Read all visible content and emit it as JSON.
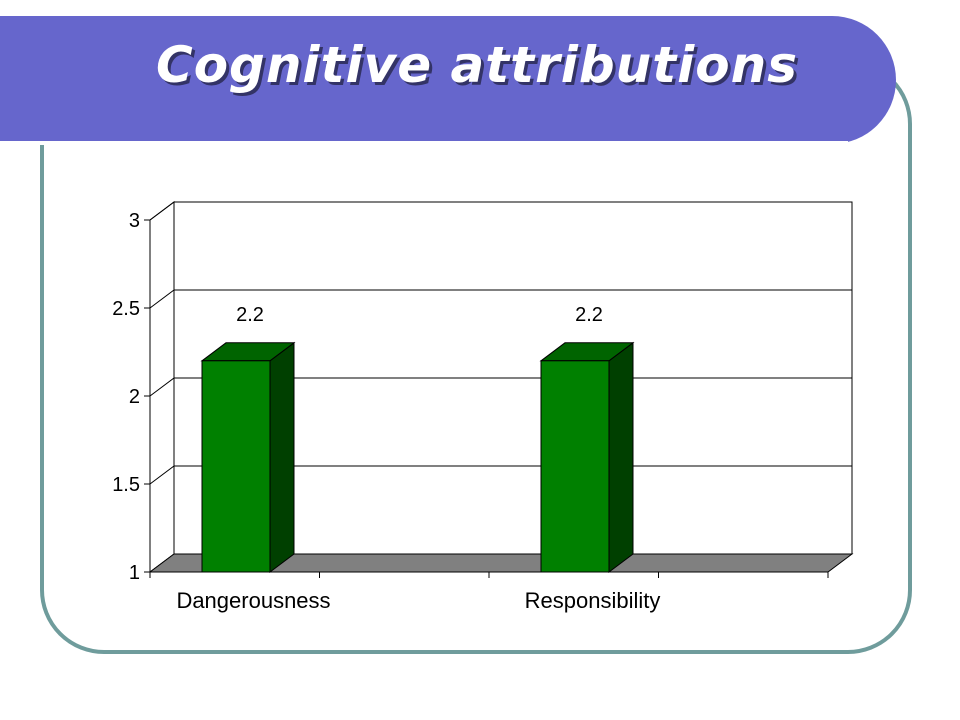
{
  "slide": {
    "title": "Cognitive attributions"
  },
  "colors": {
    "banner": "#6666cc",
    "frame": "#6f9c9c",
    "bar_front": "#008000",
    "bar_side": "#004000",
    "bar_top": "#006400",
    "floor": "#808080"
  },
  "chart_data": {
    "type": "bar",
    "categories": [
      "Dangerousness",
      "Responsibility"
    ],
    "values": [
      2.2,
      2.2
    ],
    "data_labels": [
      "2.2",
      "2.2"
    ],
    "ylim": [
      1,
      3
    ],
    "yticks": [
      1,
      1.5,
      2,
      2.5,
      3
    ],
    "ytick_labels": [
      "1",
      "1.5",
      "2",
      "2.5",
      "3"
    ],
    "title": "",
    "xlabel": "",
    "ylabel": "",
    "grid": true,
    "legend": "none",
    "style": "3d"
  }
}
